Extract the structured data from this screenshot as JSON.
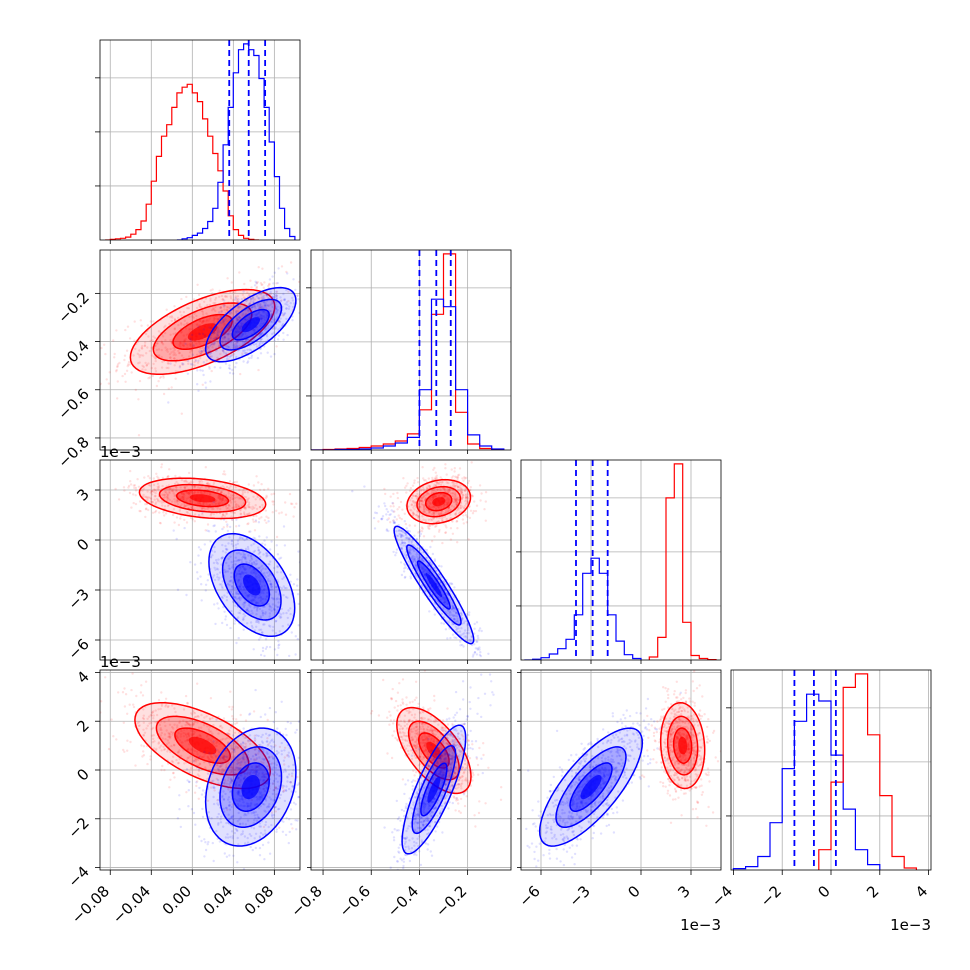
{
  "chart_data": {
    "type": "corner",
    "colors": {
      "series_a": "#ff0000",
      "series_b": "#0000ff",
      "grid": "#b0b0b0"
    },
    "parameters": [
      {
        "lim": [
          -0.09,
          0.105
        ],
        "ticks": [
          -0.08,
          -0.04,
          0.0,
          0.04,
          0.08
        ],
        "tick_labels": [
          "−0.08",
          "−0.04",
          "0.00",
          "0.04",
          "0.08"
        ],
        "offset": ""
      },
      {
        "lim": [
          -0.85,
          -0.02
        ],
        "ticks": [
          -0.8,
          -0.6,
          -0.4,
          -0.2
        ],
        "tick_labels": [
          "−0.8",
          "−0.6",
          "−0.4",
          "−0.2"
        ],
        "offset": ""
      },
      {
        "lim": [
          -0.0072,
          0.0048
        ],
        "ticks": [
          -0.006,
          -0.003,
          0.0,
          0.003
        ],
        "tick_labels": [
          "−6",
          "−3",
          "0",
          "3"
        ],
        "offset": "1e−3"
      },
      {
        "lim": [
          -0.0041,
          0.0041
        ],
        "ticks": [
          -0.004,
          -0.002,
          0.0,
          0.002,
          0.004
        ],
        "tick_labels": [
          "−4",
          "−2",
          "0",
          "2",
          "4"
        ],
        "offset": "1e−3"
      }
    ],
    "quantiles": [
      {
        "param": 0,
        "values": [
          0.036,
          0.055,
          0.071
        ]
      },
      {
        "param": 1,
        "values": [
          -0.4,
          -0.33,
          -0.27
        ]
      },
      {
        "param": 2,
        "values": [
          -0.0039,
          -0.0029,
          -0.002
        ]
      },
      {
        "param": 3,
        "values": [
          -0.0015,
          -0.0007,
          0.0002
        ]
      }
    ],
    "histograms": [
      {
        "param": 0,
        "series": [
          {
            "color": "red",
            "edges": [
              -0.085,
              -0.08,
              -0.075,
              -0.07,
              -0.065,
              -0.06,
              -0.055,
              -0.05,
              -0.045,
              -0.04,
              -0.035,
              -0.03,
              -0.025,
              -0.02,
              -0.015,
              -0.01,
              -0.005,
              0.0,
              0.005,
              0.01,
              0.015,
              0.02,
              0.025,
              0.03,
              0.035,
              0.04,
              0.045,
              0.05,
              0.055,
              0.06,
              0.065
            ],
            "counts": [
              0,
              1,
              2,
              3,
              5,
              10,
              18,
              33,
              62,
              102,
              145,
              180,
              200,
              230,
              255,
              265,
              270,
              255,
              240,
              210,
              180,
              150,
              120,
              85,
              42,
              18,
              8,
              3,
              1,
              0
            ]
          },
          {
            "color": "blue",
            "edges": [
              -0.015,
              -0.01,
              -0.005,
              0.0,
              0.005,
              0.01,
              0.015,
              0.02,
              0.025,
              0.03,
              0.035,
              0.04,
              0.045,
              0.05,
              0.055,
              0.06,
              0.065,
              0.07,
              0.075,
              0.08,
              0.085,
              0.09,
              0.095,
              0.1
            ],
            "counts": [
              0,
              2,
              4,
              8,
              12,
              20,
              32,
              55,
              100,
              165,
              230,
              290,
              330,
              340,
              330,
              320,
              280,
              230,
              170,
              110,
              55,
              20,
              6
            ]
          }
        ]
      },
      {
        "param": 1,
        "series": [
          {
            "color": "red",
            "edges": [
              -0.85,
              -0.8,
              -0.75,
              -0.7,
              -0.65,
              -0.6,
              -0.55,
              -0.5,
              -0.45,
              -0.4,
              -0.35,
              -0.3,
              -0.25,
              -0.2,
              -0.15,
              -0.1,
              -0.05
            ],
            "counts": [
              0,
              1,
              2,
              3,
              5,
              8,
              12,
              18,
              32,
              80,
              270,
              390,
              75,
              12,
              3,
              1
            ]
          },
          {
            "color": "blue",
            "edges": [
              -0.85,
              -0.8,
              -0.75,
              -0.7,
              -0.65,
              -0.6,
              -0.55,
              -0.5,
              -0.45,
              -0.4,
              -0.35,
              -0.3,
              -0.25,
              -0.2,
              -0.15,
              -0.1,
              -0.05
            ],
            "counts": [
              0,
              0,
              1,
              1,
              2,
              4,
              8,
              14,
              25,
              120,
              300,
              285,
              120,
              30,
              8,
              2
            ]
          }
        ]
      },
      {
        "param": 2,
        "series": [
          {
            "color": "blue",
            "edges": [
              -0.007,
              -0.0065,
              -0.006,
              -0.0055,
              -0.005,
              -0.0045,
              -0.004,
              -0.0035,
              -0.003,
              -0.0025,
              -0.002,
              -0.0015,
              -0.001,
              -0.0005,
              0.0
            ],
            "counts": [
              0,
              2,
              6,
              16,
              30,
              55,
              120,
              230,
              270,
              230,
              120,
              50,
              14,
              4
            ]
          },
          {
            "color": "red",
            "edges": [
              0.0005,
              0.001,
              0.0015,
              0.002,
              0.0025,
              0.003,
              0.0035,
              0.004,
              0.0045
            ],
            "counts": [
              8,
              60,
              430,
              520,
              100,
              12,
              4,
              1
            ]
          }
        ]
      },
      {
        "param": 3,
        "series": [
          {
            "color": "blue",
            "edges": [
              -0.004,
              -0.0035,
              -0.003,
              -0.0025,
              -0.002,
              -0.0015,
              -0.001,
              -0.0005,
              0.0,
              0.0005,
              0.001,
              0.0015,
              0.002
            ],
            "counts": [
              2,
              5,
              20,
              70,
              150,
              220,
              260,
              250,
              170,
              90,
              30,
              8
            ]
          },
          {
            "color": "red",
            "edges": [
              -0.0005,
              0.0,
              0.0005,
              0.001,
              0.0015,
              0.002,
              0.0025,
              0.003,
              0.0035
            ],
            "counts": [
              30,
              130,
              270,
              290,
              200,
              110,
              20,
              3
            ]
          }
        ]
      }
    ],
    "contours": [
      {
        "x": 0,
        "y": 1,
        "series": [
          {
            "color": "red",
            "center": [
              0.01,
              -0.36
            ],
            "sigma": [
              0.032,
              0.08
            ],
            "rho": 0.6
          },
          {
            "color": "blue",
            "center": [
              0.057,
              -0.33
            ],
            "sigma": [
              0.02,
              0.07
            ],
            "rho": 0.65
          }
        ]
      },
      {
        "x": 0,
        "y": 2,
        "series": [
          {
            "color": "red",
            "center": [
              0.01,
              0.0025
            ],
            "sigma": [
              0.028,
              0.00055
            ],
            "rho": -0.3
          },
          {
            "color": "blue",
            "center": [
              0.058,
              -0.0027
            ],
            "sigma": [
              0.019,
              0.0014
            ],
            "rho": -0.45
          }
        ]
      },
      {
        "x": 1,
        "y": 2,
        "series": [
          {
            "color": "red",
            "center": [
              -0.32,
              0.0023
            ],
            "sigma": [
              0.06,
              0.0006
            ],
            "rho": 0.2
          },
          {
            "color": "blue",
            "center": [
              -0.34,
              -0.0027
            ],
            "sigma": [
              0.075,
              0.0016
            ],
            "rho": -0.93
          }
        ]
      },
      {
        "x": 0,
        "y": 3,
        "series": [
          {
            "color": "red",
            "center": [
              0.01,
              0.001
            ],
            "sigma": [
              0.03,
              0.0008
            ],
            "rho": -0.6
          },
          {
            "color": "blue",
            "center": [
              0.057,
              -0.0007
            ],
            "sigma": [
              0.02,
              0.0011
            ],
            "rho": 0.25
          }
        ]
      },
      {
        "x": 1,
        "y": 3,
        "series": [
          {
            "color": "red",
            "center": [
              -0.34,
              0.0008
            ],
            "sigma": [
              0.07,
              0.0008
            ],
            "rho": -0.6
          },
          {
            "color": "blue",
            "center": [
              -0.34,
              -0.0008
            ],
            "sigma": [
              0.06,
              0.0012
            ],
            "rho": 0.8
          }
        ]
      },
      {
        "x": 2,
        "y": 3,
        "series": [
          {
            "color": "red",
            "center": [
              0.0025,
              0.001
            ],
            "sigma": [
              0.0006,
              0.0008
            ],
            "rho": -0.1
          },
          {
            "color": "blue",
            "center": [
              -0.003,
              -0.0007
            ],
            "sigma": [
              0.0014,
              0.0011
            ],
            "rho": 0.75
          }
        ]
      }
    ]
  }
}
